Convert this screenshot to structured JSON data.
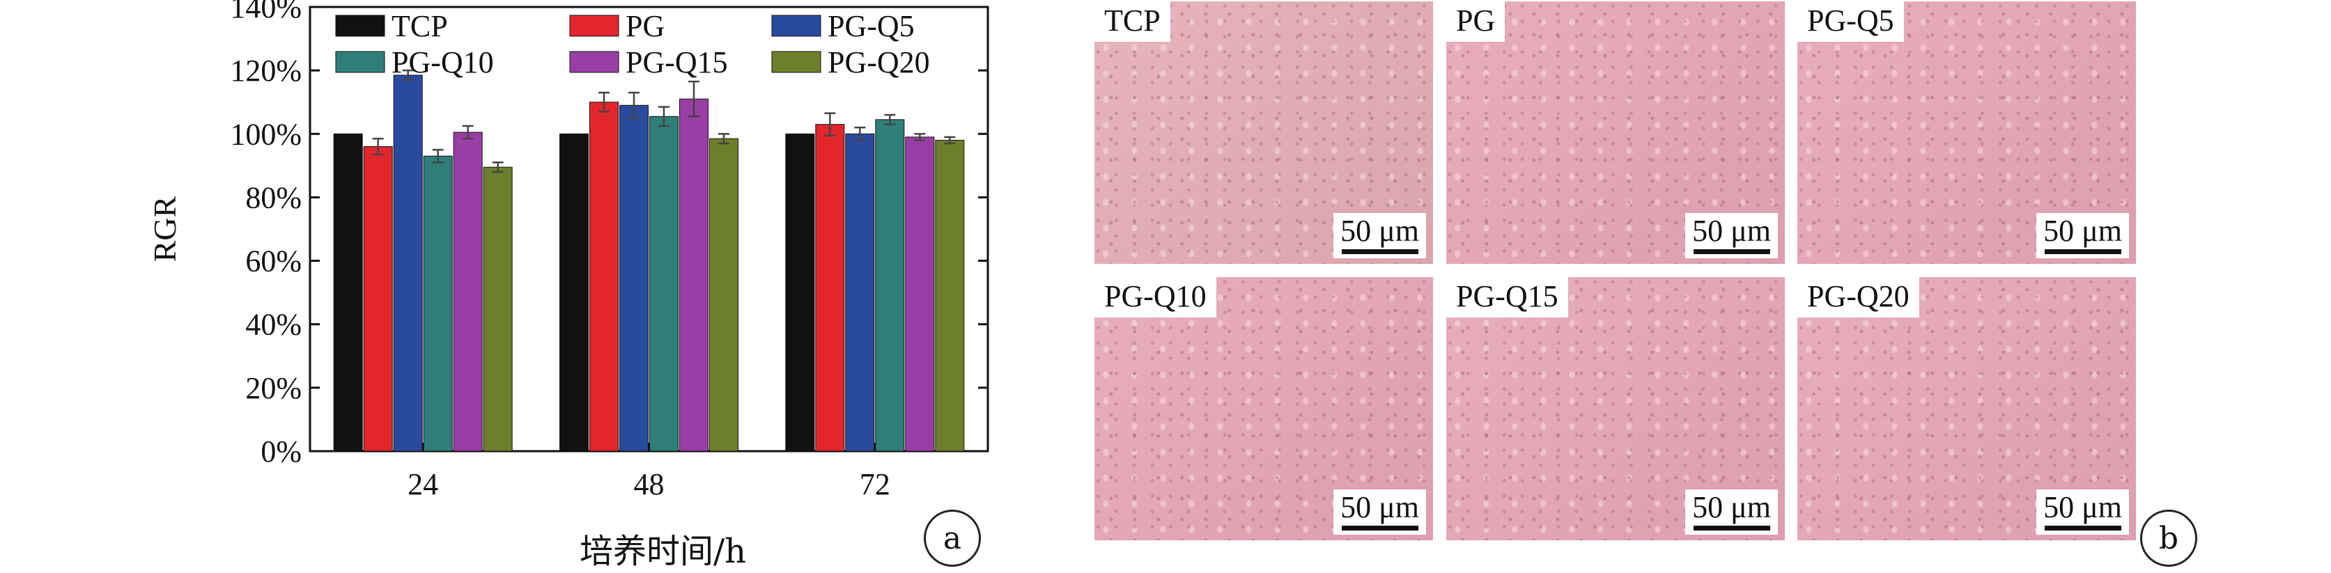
{
  "panel_a_label": "a",
  "panel_b_label": "b",
  "chart_data": {
    "type": "bar",
    "ylabel": "RGR",
    "xlabel": "培养时间/h",
    "categories": [
      "24",
      "48",
      "72"
    ],
    "ylim": [
      0,
      140
    ],
    "yticks": [
      {
        "value": 0,
        "label": "0%"
      },
      {
        "value": 20,
        "label": "20%"
      },
      {
        "value": 40,
        "label": "40%"
      },
      {
        "value": 60,
        "label": "60%"
      },
      {
        "value": 80,
        "label": "80%"
      },
      {
        "value": 100,
        "label": "100%"
      },
      {
        "value": 120,
        "label": "120%"
      },
      {
        "value": 140,
        "label": "140%"
      }
    ],
    "legend_placement": "top, inside plot, 2 rows",
    "series": [
      {
        "name": "TCP",
        "color": "#111111",
        "values": [
          100,
          100,
          100
        ],
        "errors": [
          0,
          0,
          0
        ]
      },
      {
        "name": "PG",
        "color": "#e2262c",
        "values": [
          96,
          110,
          103
        ],
        "errors": [
          2.5,
          3,
          3.5
        ]
      },
      {
        "name": "PG-Q5",
        "color": "#2a4a9f",
        "values": [
          118.5,
          109,
          100
        ],
        "errors": [
          1.5,
          4,
          2
        ]
      },
      {
        "name": "PG-Q10",
        "color": "#2e7f79",
        "values": [
          93,
          105.5,
          104.5
        ],
        "errors": [
          2,
          3,
          1.5
        ]
      },
      {
        "name": "PG-Q15",
        "color": "#9a3ea6",
        "values": [
          100.5,
          111,
          99
        ],
        "errors": [
          2,
          5.5,
          1
        ]
      },
      {
        "name": "PG-Q20",
        "color": "#6e7f2c",
        "values": [
          89.5,
          98.5,
          98
        ],
        "errors": [
          1.5,
          1.5,
          1
        ]
      }
    ]
  },
  "micrographs": [
    {
      "label": "TCP",
      "scale": "50 μm"
    },
    {
      "label": "PG",
      "scale": "50 μm"
    },
    {
      "label": "PG-Q5",
      "scale": "50 μm"
    },
    {
      "label": "PG-Q10",
      "scale": "50 μm"
    },
    {
      "label": "PG-Q15",
      "scale": "50 μm"
    },
    {
      "label": "PG-Q20",
      "scale": "50 μm"
    }
  ]
}
